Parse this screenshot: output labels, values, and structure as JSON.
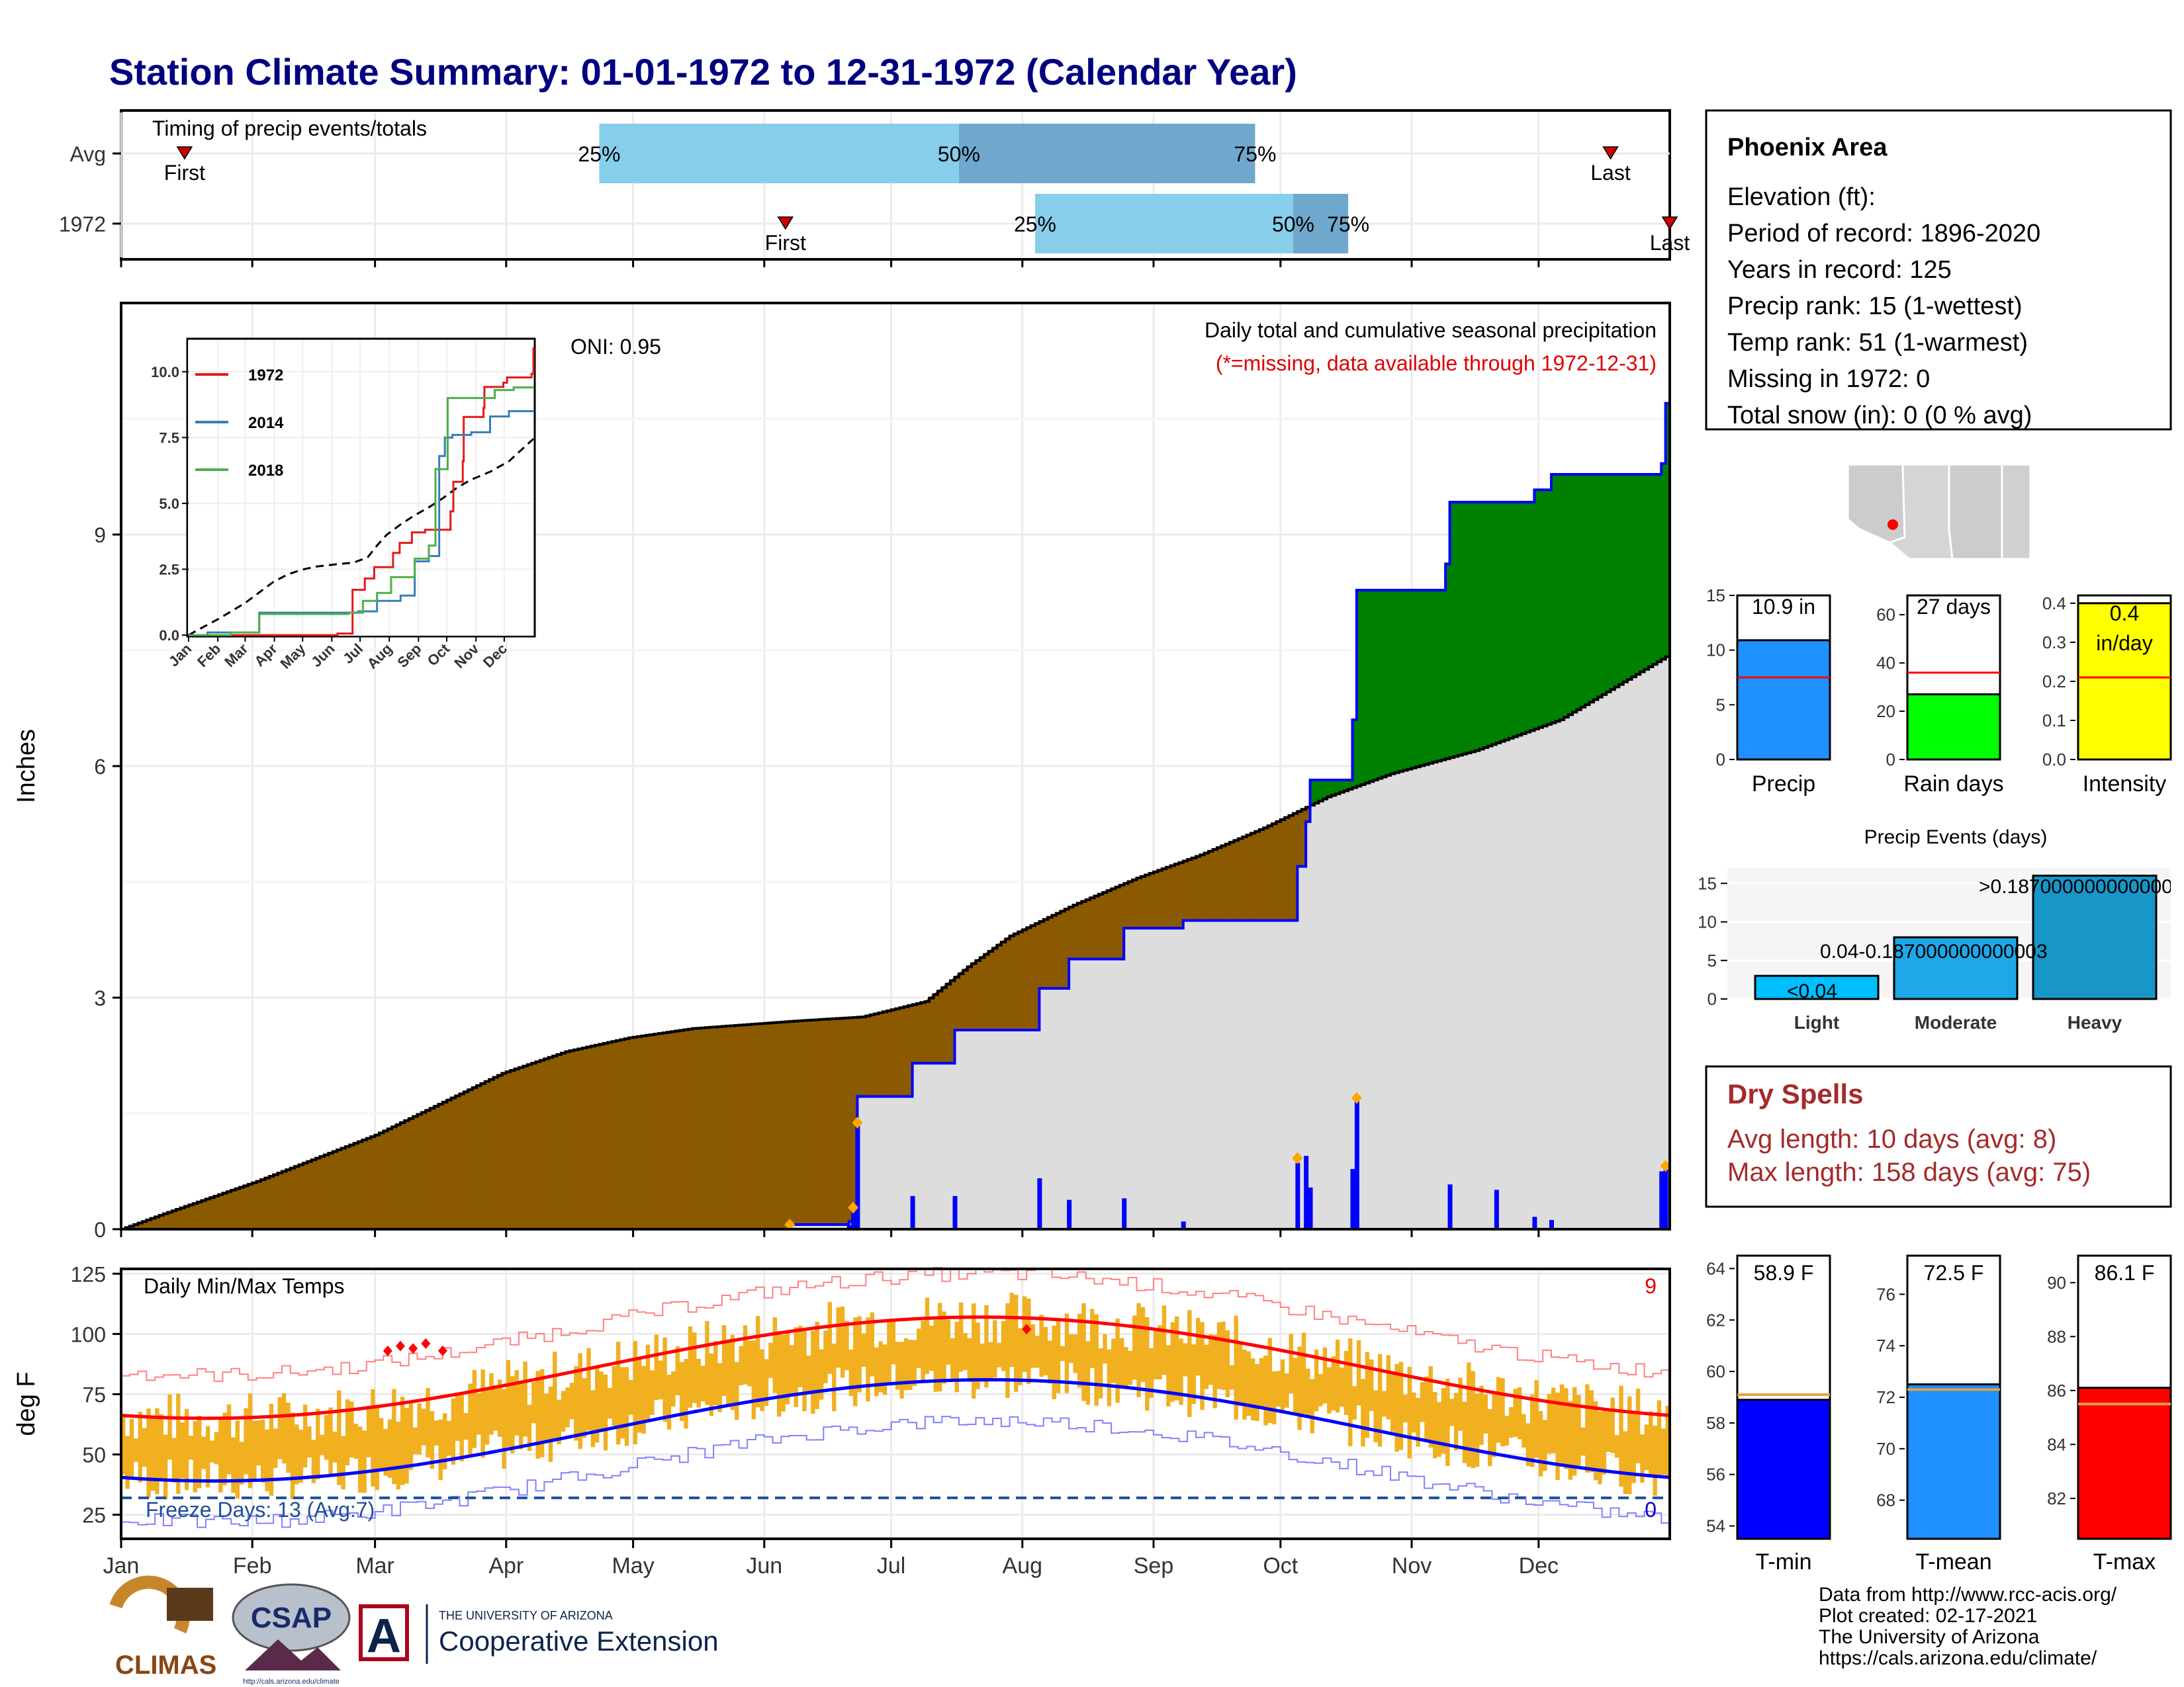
{
  "title": "Station Climate Summary: 01-01-1972 to 12-31-1972 (Calendar Year)",
  "months": [
    "Jan",
    "Feb",
    "Mar",
    "Apr",
    "May",
    "Jun",
    "Jul",
    "Aug",
    "Sep",
    "Oct",
    "Nov",
    "Dec"
  ],
  "timing": {
    "label": "Timing of precip events/totals",
    "rows": [
      {
        "name": "Avg",
        "first_doy": 15,
        "last_doy": 352,
        "q25_doy": 113,
        "q50_doy": 198,
        "q75_doy": 268,
        "first_label": "First",
        "last_label": "Last",
        "q25_label": "25%",
        "q50_label": "50%",
        "q75_label": "75%"
      },
      {
        "name": "1972",
        "first_doy": 157,
        "last_doy": 366,
        "q25_doy": 216,
        "q50_doy": 277,
        "q75_doy": 290,
        "first_label": "First",
        "last_label": "Last",
        "q25_label": "25%",
        "q50_label": "50%",
        "q75_label": "75%"
      }
    ],
    "colors": {
      "light": "#87ceeb",
      "dark": "#6fa8cc",
      "marker": "#cc0000"
    }
  },
  "precip": {
    "ylabel": "Inches",
    "ylim": [
      0,
      12
    ],
    "yticks": [
      0,
      3,
      6,
      9
    ],
    "oni": "ONI: 0.95",
    "note": "Daily total and cumulative seasonal precipitation",
    "missing_note": "(*=missing, data available through 1972-12-31)",
    "avg_cumulative_knots": [
      [
        0,
        0
      ],
      [
        10,
        0.2
      ],
      [
        32,
        0.62
      ],
      [
        60,
        1.22
      ],
      [
        75,
        1.62
      ],
      [
        90,
        2.02
      ],
      [
        105,
        2.3
      ],
      [
        120,
        2.48
      ],
      [
        135,
        2.6
      ],
      [
        160,
        2.7
      ],
      [
        175,
        2.75
      ],
      [
        190,
        2.95
      ],
      [
        200,
        3.4
      ],
      [
        210,
        3.8
      ],
      [
        225,
        4.2
      ],
      [
        240,
        4.55
      ],
      [
        255,
        4.85
      ],
      [
        270,
        5.2
      ],
      [
        285,
        5.6
      ],
      [
        300,
        5.9
      ],
      [
        320,
        6.2
      ],
      [
        340,
        6.6
      ],
      [
        366,
        7.45
      ]
    ],
    "cumulative_1972_steps": [
      [
        0,
        0
      ],
      [
        158,
        0.06
      ],
      [
        172,
        0.1
      ],
      [
        173,
        0.28
      ],
      [
        174,
        1.72
      ],
      [
        187,
        2.15
      ],
      [
        197,
        2.58
      ],
      [
        217,
        3.12
      ],
      [
        224,
        3.5
      ],
      [
        237,
        3.9
      ],
      [
        251,
        4.0
      ],
      [
        278,
        4.7
      ],
      [
        280,
        5.28
      ],
      [
        281,
        5.82
      ],
      [
        290,
        5.82
      ],
      [
        291,
        6.6
      ],
      [
        292,
        8.28
      ],
      [
        313,
        8.62
      ],
      [
        314,
        9.42
      ],
      [
        334,
        9.58
      ],
      [
        338,
        9.78
      ],
      [
        364,
        9.92
      ],
      [
        365,
        10.7
      ],
      [
        366,
        10.92
      ]
    ],
    "daily_bars": [
      [
        158,
        0.06
      ],
      [
        172,
        0.05
      ],
      [
        173,
        0.28
      ],
      [
        174,
        1.38
      ],
      [
        187,
        0.43
      ],
      [
        197,
        0.43
      ],
      [
        217,
        0.66
      ],
      [
        224,
        0.38
      ],
      [
        237,
        0.4
      ],
      [
        251,
        0.1
      ],
      [
        278,
        0.86
      ],
      [
        280,
        0.95
      ],
      [
        281,
        0.54
      ],
      [
        291,
        0.78
      ],
      [
        292,
        1.68
      ],
      [
        314,
        0.58
      ],
      [
        325,
        0.51
      ],
      [
        334,
        0.16
      ],
      [
        338,
        0.12
      ],
      [
        364,
        0.75
      ],
      [
        365,
        0.78
      ]
    ],
    "diamonds": [
      [
        158,
        0.06
      ],
      [
        173,
        0.28
      ],
      [
        174,
        1.38
      ],
      [
        278,
        0.92
      ],
      [
        292,
        1.7
      ],
      [
        365,
        0.82
      ]
    ],
    "colors": {
      "deficit": "#8b5a00",
      "surplus": "#008000",
      "normal": "#dddddd",
      "line": "#0000ff",
      "bar": "#0000ff",
      "diamond": "#ffa500"
    }
  },
  "inset": {
    "ylim": [
      0,
      11.2
    ],
    "yticks": [
      "0.0",
      "2.5",
      "5.0",
      "7.5",
      "10.0"
    ],
    "ytick_values": [
      0,
      2.5,
      5,
      7.5,
      10
    ],
    "series": [
      {
        "name": "1972",
        "color": "#e41a1c",
        "steps": [
          [
            0,
            0
          ],
          [
            158,
            0.06
          ],
          [
            174,
            1.72
          ],
          [
            187,
            2.15
          ],
          [
            197,
            2.58
          ],
          [
            217,
            3.12
          ],
          [
            224,
            3.5
          ],
          [
            237,
            3.9
          ],
          [
            251,
            4.0
          ],
          [
            278,
            4.7
          ],
          [
            281,
            5.82
          ],
          [
            291,
            6.6
          ],
          [
            292,
            8.28
          ],
          [
            313,
            8.62
          ],
          [
            314,
            9.42
          ],
          [
            334,
            9.58
          ],
          [
            338,
            9.78
          ],
          [
            364,
            9.92
          ],
          [
            366,
            10.92
          ]
        ]
      },
      {
        "name": "2014",
        "color": "#377eb8",
        "steps": [
          [
            0,
            0
          ],
          [
            20,
            0.1
          ],
          [
            75,
            0.85
          ],
          [
            180,
            0.9
          ],
          [
            200,
            1.3
          ],
          [
            225,
            1.5
          ],
          [
            240,
            2.8
          ],
          [
            255,
            3.0
          ],
          [
            266,
            6.8
          ],
          [
            272,
            7.5
          ],
          [
            280,
            7.6
          ],
          [
            300,
            7.7
          ],
          [
            320,
            8.3
          ],
          [
            340,
            8.5
          ],
          [
            366,
            8.5
          ]
        ]
      },
      {
        "name": "2018",
        "color": "#4daf4a",
        "steps": [
          [
            0,
            0
          ],
          [
            45,
            0.1
          ],
          [
            75,
            0.8
          ],
          [
            170,
            0.85
          ],
          [
            185,
            1.3
          ],
          [
            200,
            1.6
          ],
          [
            215,
            2.2
          ],
          [
            240,
            2.9
          ],
          [
            255,
            3.4
          ],
          [
            262,
            6.3
          ],
          [
            275,
            9.0
          ],
          [
            300,
            9.0
          ],
          [
            325,
            9.3
          ],
          [
            345,
            9.4
          ],
          [
            366,
            9.4
          ]
        ]
      }
    ],
    "avg_color": "#000000"
  },
  "station": {
    "name": "Phoenix Area",
    "lines": [
      "Elevation (ft):",
      "Period of record: 1896-2020",
      "Years in record: 125",
      "Precip rank: 15 (1-wettest)",
      "Temp rank: 51 (1-warmest)",
      "Missing in 1972: 0",
      "Total snow (in): 0 (0 % avg)"
    ]
  },
  "mini_bars": [
    {
      "label": "Precip",
      "value_label": "10.9 in",
      "value": 10.9,
      "avg": 7.5,
      "ymax": 15,
      "yticks": [
        0,
        5,
        10,
        15
      ],
      "color": "#1e90ff"
    },
    {
      "label": "Rain days",
      "value_label": "27 days",
      "value": 27,
      "avg": 36,
      "ymax": 68,
      "yticks": [
        0,
        20,
        40,
        60
      ],
      "color": "#00ff00"
    },
    {
      "label": "Intensity",
      "value_label": "0.4 in/day",
      "value_label_lines": [
        "0.4",
        "in/day"
      ],
      "value": 0.4,
      "avg": 0.21,
      "ymax": 0.42,
      "yticks": [
        "0.0",
        "0.1",
        "0.2",
        "0.3",
        "0.4"
      ],
      "ytick_values": [
        0,
        0.1,
        0.2,
        0.3,
        0.4
      ],
      "color": "#ffff00"
    }
  ],
  "events": {
    "title": "Precip Events (days)",
    "categories": [
      "Light",
      "Moderate",
      "Heavy"
    ],
    "values": [
      3,
      8,
      16
    ],
    "labels": [
      "<0.04",
      "0.04-0.187000000000003",
      ">0.187000000000000"
    ],
    "colors": [
      "#00bfff",
      "#1ea8e6",
      "#1996c8"
    ],
    "ymax": 17,
    "yticks": [
      0,
      5,
      10,
      15
    ]
  },
  "dry_spells": {
    "title": "Dry Spells",
    "avg_line": "Avg length: 10 days (avg: 8)",
    "max_line": "Max length: 158 days (avg: 75)",
    "color": "#a52a2a"
  },
  "temps": {
    "ylabel": "deg F",
    "label": "Daily Min/Max Temps",
    "freeze_label": "Freeze Days: 13 (Avg:7)",
    "count_top": "9",
    "count_bottom": "0",
    "ylim": [
      15,
      127
    ],
    "yticks": [
      25,
      50,
      75,
      100,
      125
    ],
    "freeze_line": 32,
    "colors": {
      "range": "#f0b020",
      "max_avg": "#ff0000",
      "min_avg": "#0000ff",
      "record_max": "#ff8080",
      "record_min": "#8080ff",
      "freeze": "#1f4e9c",
      "record_mark": "#ff0000"
    }
  },
  "temp_bars": [
    {
      "label": "T-min",
      "value_label": "58.9 F",
      "value": 58.9,
      "avg": 59.1,
      "ymin": 53.5,
      "ymax": 64.5,
      "yticks": [
        54,
        56,
        58,
        60,
        62,
        64
      ],
      "color": "#0000ff"
    },
    {
      "label": "T-mean",
      "value_label": "72.5 F",
      "value": 72.5,
      "avg": 72.3,
      "ymin": 66.5,
      "ymax": 77.5,
      "yticks": [
        68,
        70,
        72,
        74,
        76
      ],
      "color": "#1e90ff"
    },
    {
      "label": "T-max",
      "value_label": "86.1 F",
      "value": 86.1,
      "avg": 85.5,
      "ymin": 80.5,
      "ymax": 91.0,
      "yticks": [
        82,
        84,
        86,
        88,
        90
      ],
      "color": "#ff0000"
    }
  ],
  "footer": {
    "lines": [
      "Data from http://www.rcc-acis.org/",
      "Plot created: 02-17-2021",
      "The University of Arizona",
      "https://cals.arizona.edu/climate/"
    ],
    "logos": {
      "climas": "CLIMAS",
      "csap": "CSAP",
      "csap_url": "http://cals.arizona.edu/climate",
      "ua_top": "THE UNIVERSITY OF ARIZONA",
      "ua_bottom": "Cooperative Extension",
      "ua_letter": "A"
    }
  }
}
